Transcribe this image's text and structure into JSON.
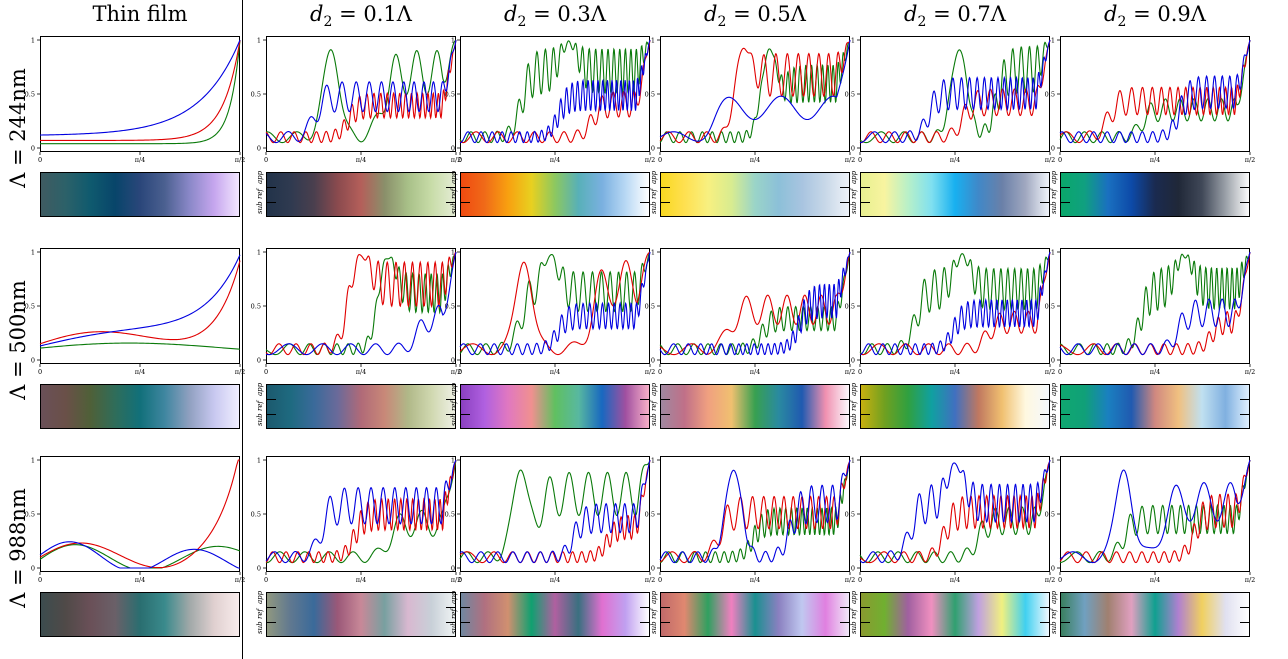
{
  "columns": [
    {
      "kind": "text",
      "text": "Thin film"
    },
    {
      "kind": "math",
      "d": "d",
      "sub": "2",
      "rest": " = 0.1Λ"
    },
    {
      "kind": "math",
      "d": "d",
      "sub": "2",
      "rest": " = 0.3Λ"
    },
    {
      "kind": "math",
      "d": "d",
      "sub": "2",
      "rest": " = 0.5Λ"
    },
    {
      "kind": "math",
      "d": "d",
      "sub": "2",
      "rest": " = 0.7Λ"
    },
    {
      "kind": "math",
      "d": "d",
      "sub": "2",
      "rest": " = 0.9Λ"
    }
  ],
  "rows": [
    {
      "label": "Λ = 244nm"
    },
    {
      "label": "Λ = 500nm"
    },
    {
      "label": "Λ = 988nm"
    }
  ],
  "axis": {
    "xticks": [
      "0",
      "π/4",
      "π/2"
    ],
    "yticks": [
      "0",
      "0.5",
      "1"
    ]
  },
  "colorbar_labels": [
    "app",
    "ref",
    "sub"
  ],
  "chart_data": {
    "type": "line",
    "x_range": [
      0,
      1.5708
    ],
    "y_range": [
      0,
      1
    ],
    "series_colors": {
      "R": "#e00000",
      "G": "#0a7a0a",
      "B": "#0000e0"
    },
    "panels": [
      {
        "row": 0,
        "col": 0,
        "kind": "smooth",
        "mode": "thin",
        "B": {
          "s": 0.12,
          "e": 1.0,
          "k": 5,
          "amp": 0,
          "f": 0,
          "b": 0
        },
        "R": {
          "s": 0.07,
          "e": 1.0,
          "k": 12,
          "amp": 0,
          "f": 0,
          "b": 0
        },
        "G": {
          "s": 0.04,
          "e": 1.0,
          "k": 20,
          "amp": 0,
          "f": 0,
          "b": 0
        },
        "stops": [
          "#3f5b61",
          "#2c6169",
          "#0f5a6e",
          "#08456a",
          "#2a467a",
          "#4b6090",
          "#8a88c8",
          "#c6a6ee",
          "#f2e6ff"
        ]
      },
      {
        "row": 0,
        "col": 1,
        "kind": "osc",
        "seed": 11,
        "stops": [
          "#22334a",
          "#2f3a50",
          "#4a3f4e",
          "#8a4a4e",
          "#b45f5a",
          "#8a8f6a",
          "#a8c088",
          "#c8dca8",
          "#e4ecd4"
        ]
      },
      {
        "row": 0,
        "col": 2,
        "kind": "osc",
        "seed": 23,
        "stops": [
          "#f04a10",
          "#f06a18",
          "#f8a010",
          "#e8d020",
          "#8cc860",
          "#58b0b8",
          "#7ab0e0",
          "#b8d8f4",
          "#ffffff"
        ]
      },
      {
        "row": 0,
        "col": 3,
        "kind": "osc",
        "seed": 37,
        "stops": [
          "#f8d820",
          "#ffe050",
          "#f8f080",
          "#d8ec90",
          "#9ad4c8",
          "#8cc0d8",
          "#a8c4e0",
          "#c8d8e8",
          "#eef2f8"
        ]
      },
      {
        "row": 0,
        "col": 4,
        "kind": "osc",
        "seed": 41,
        "stops": [
          "#e8f090",
          "#f8f4a0",
          "#b8f0c8",
          "#80e0f0",
          "#18b0f0",
          "#4088c8",
          "#6a80a8",
          "#a0a8c0",
          "#f0f4fa"
        ]
      },
      {
        "row": 0,
        "col": 5,
        "kind": "osc",
        "seed": 53,
        "stops": [
          "#0aa86a",
          "#10a080",
          "#1a70c0",
          "#0d4aa8",
          "#1a2a50",
          "#202838",
          "#404858",
          "#9aa0a8",
          "#fcfcfc"
        ]
      },
      {
        "row": 1,
        "col": 0,
        "kind": "smooth",
        "mode": "thin2",
        "B": {
          "s": 0.13,
          "e": 1.0,
          "k": 5,
          "amp": 0.12,
          "f": 1.1,
          "b": 0.02
        },
        "R": {
          "s": 0.15,
          "e": 1.0,
          "k": 8,
          "amp": 0.12,
          "f": 1.6,
          "b": 0.05
        },
        "G": {
          "s": 0.11,
          "e": 0.1,
          "k": 0,
          "amp": 0.06,
          "f": 1.0,
          "b": 0.1
        },
        "stops": [
          "#6a5058",
          "#6a5048",
          "#4f6038",
          "#2f6d5a",
          "#11707a",
          "#3f86a0",
          "#90a0c0",
          "#c8c8f0",
          "#f0eeff"
        ]
      },
      {
        "row": 1,
        "col": 1,
        "kind": "osc",
        "seed": 61,
        "stops": [
          "#1c5a6e",
          "#1e6a80",
          "#3a6a9a",
          "#6a6a9a",
          "#b06a78",
          "#c88878",
          "#b0b888",
          "#d0d8b0",
          "#eef0e4"
        ]
      },
      {
        "row": 1,
        "col": 2,
        "kind": "osc",
        "seed": 73,
        "stops": [
          "#8a40c0",
          "#b060e0",
          "#e078c0",
          "#f09090",
          "#60c060",
          "#58b8a0",
          "#1868c0",
          "#a050a0",
          "#f8b0c8"
        ]
      },
      {
        "row": 1,
        "col": 3,
        "kind": "osc",
        "seed": 83,
        "stops": [
          "#a088a0",
          "#c07088",
          "#f0a080",
          "#f0c070",
          "#38a050",
          "#2a8aa0",
          "#205ab0",
          "#f090b0",
          "#fcf8fc"
        ]
      },
      {
        "row": 1,
        "col": 4,
        "kind": "osc",
        "seed": 97,
        "stops": [
          "#c8b010",
          "#70a020",
          "#30a040",
          "#10a0a0",
          "#4070c0",
          "#c07860",
          "#f0c070",
          "#fff8e0",
          "#f4f8fc"
        ]
      },
      {
        "row": 1,
        "col": 5,
        "kind": "osc",
        "seed": 103,
        "stops": [
          "#10a870",
          "#10a078",
          "#1a80c0",
          "#205ab0",
          "#d08880",
          "#f0c080",
          "#c0e0f0",
          "#80b0e0",
          "#e0f0ff"
        ]
      },
      {
        "row": 2,
        "col": 0,
        "kind": "smooth",
        "mode": "thin3",
        "B": {
          "s": 0.12,
          "e": 0.05,
          "k": 0,
          "amp": 0.14,
          "f": 3.2,
          "b": 0.14
        },
        "R": {
          "s": 0.1,
          "e": 1.0,
          "k": 10,
          "amp": 0.14,
          "f": 2.4,
          "b": 0.08
        },
        "G": {
          "s": 0.08,
          "e": 0.1,
          "k": 0,
          "amp": 0.14,
          "f": 2.8,
          "b": 0.12
        },
        "stops": [
          "#3c4c4e",
          "#504a48",
          "#6a5058",
          "#6a6068",
          "#2a6e70",
          "#3a8a8c",
          "#a0a8a8",
          "#e0d0d0",
          "#f8ecec"
        ]
      },
      {
        "row": 2,
        "col": 1,
        "kind": "osc",
        "seed": 113,
        "stops": [
          "#909880",
          "#607890",
          "#3a6a9a",
          "#9a5878",
          "#c88898",
          "#78a0a0",
          "#d8b8d0",
          "#c8d0d8",
          "#f0f4f4"
        ]
      },
      {
        "row": 2,
        "col": 2,
        "kind": "osc",
        "seed": 127,
        "stops": [
          "#7088a0",
          "#b07080",
          "#d09070",
          "#10a070",
          "#b060a0",
          "#3a7080",
          "#e070d0",
          "#c0a0f0",
          "#ffffff"
        ]
      },
      {
        "row": 2,
        "col": 3,
        "kind": "osc",
        "seed": 131,
        "stops": [
          "#c06a6a",
          "#e08870",
          "#30a060",
          "#f080c0",
          "#1a9090",
          "#8a80c0",
          "#c0c8f0",
          "#e080e0",
          "#f0e8f8"
        ]
      },
      {
        "row": 2,
        "col": 4,
        "kind": "osc",
        "seed": 137,
        "stops": [
          "#8a9a30",
          "#70b030",
          "#a060a0",
          "#f090c0",
          "#30a070",
          "#c0a0e0",
          "#f0f080",
          "#40d0f0",
          "#f0f8ff"
        ]
      },
      {
        "row": 2,
        "col": 5,
        "kind": "osc",
        "seed": 149,
        "stops": [
          "#3a8060",
          "#70a0c0",
          "#a08070",
          "#e0a0c0",
          "#10a090",
          "#b080d0",
          "#f0d060",
          "#e0e0f0",
          "#ffffff"
        ]
      }
    ]
  }
}
